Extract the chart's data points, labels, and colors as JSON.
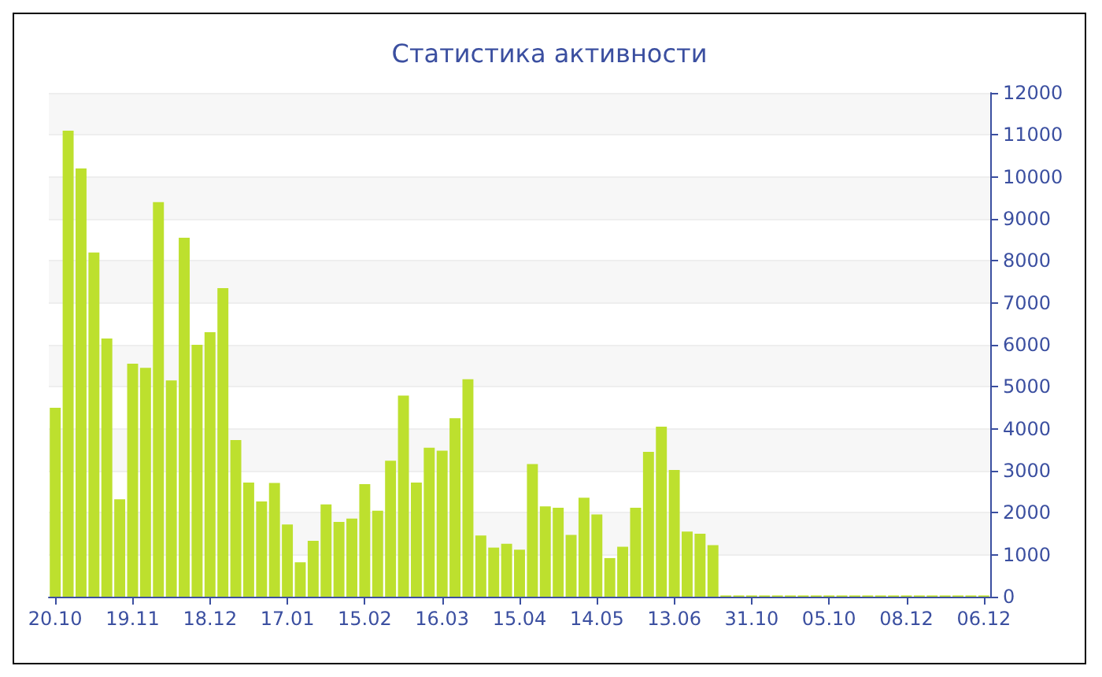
{
  "chart_data": {
    "type": "bar",
    "title": "Статистика активности",
    "categories": [
      "20.10",
      null,
      null,
      null,
      null,
      null,
      "19.11",
      null,
      null,
      null,
      null,
      null,
      "18.12",
      null,
      null,
      null,
      null,
      null,
      "17.01",
      null,
      null,
      null,
      null,
      null,
      "15.02",
      null,
      null,
      null,
      null,
      null,
      "16.03",
      null,
      null,
      null,
      null,
      null,
      "15.04",
      null,
      null,
      null,
      null,
      null,
      "14.05",
      null,
      null,
      null,
      null,
      null,
      "13.06",
      null,
      null,
      null,
      null,
      null,
      "31.10",
      null,
      null,
      null,
      null,
      null,
      "05.10",
      null,
      null,
      null,
      null,
      null,
      "08.12",
      null,
      null,
      null,
      null,
      null,
      "06.12"
    ],
    "values": [
      4500,
      11100,
      10200,
      8200,
      6150,
      2320,
      5550,
      5450,
      9400,
      5150,
      8550,
      6000,
      6300,
      7350,
      3730,
      2720,
      2270,
      2710,
      1720,
      820,
      1330,
      2200,
      1780,
      1860,
      2680,
      2050,
      3240,
      4790,
      2720,
      3550,
      3480,
      4250,
      5180,
      1460,
      1170,
      1260,
      1120,
      3160,
      2150,
      2120,
      1470,
      2360,
      1960,
      920,
      1190,
      2120,
      3450,
      4050,
      3020,
      1550,
      1500,
      1230,
      30,
      30,
      30,
      30,
      30,
      30,
      30,
      30,
      30,
      30,
      30,
      30,
      30,
      30,
      30,
      30,
      30,
      30,
      30,
      30,
      30
    ],
    "color": "#bde02e",
    "ylim": [
      0,
      12000
    ],
    "yticks": [
      0,
      1000,
      2000,
      3000,
      4000,
      5000,
      6000,
      7000,
      8000,
      9000,
      10000,
      11000,
      12000
    ],
    "grid": "y"
  }
}
